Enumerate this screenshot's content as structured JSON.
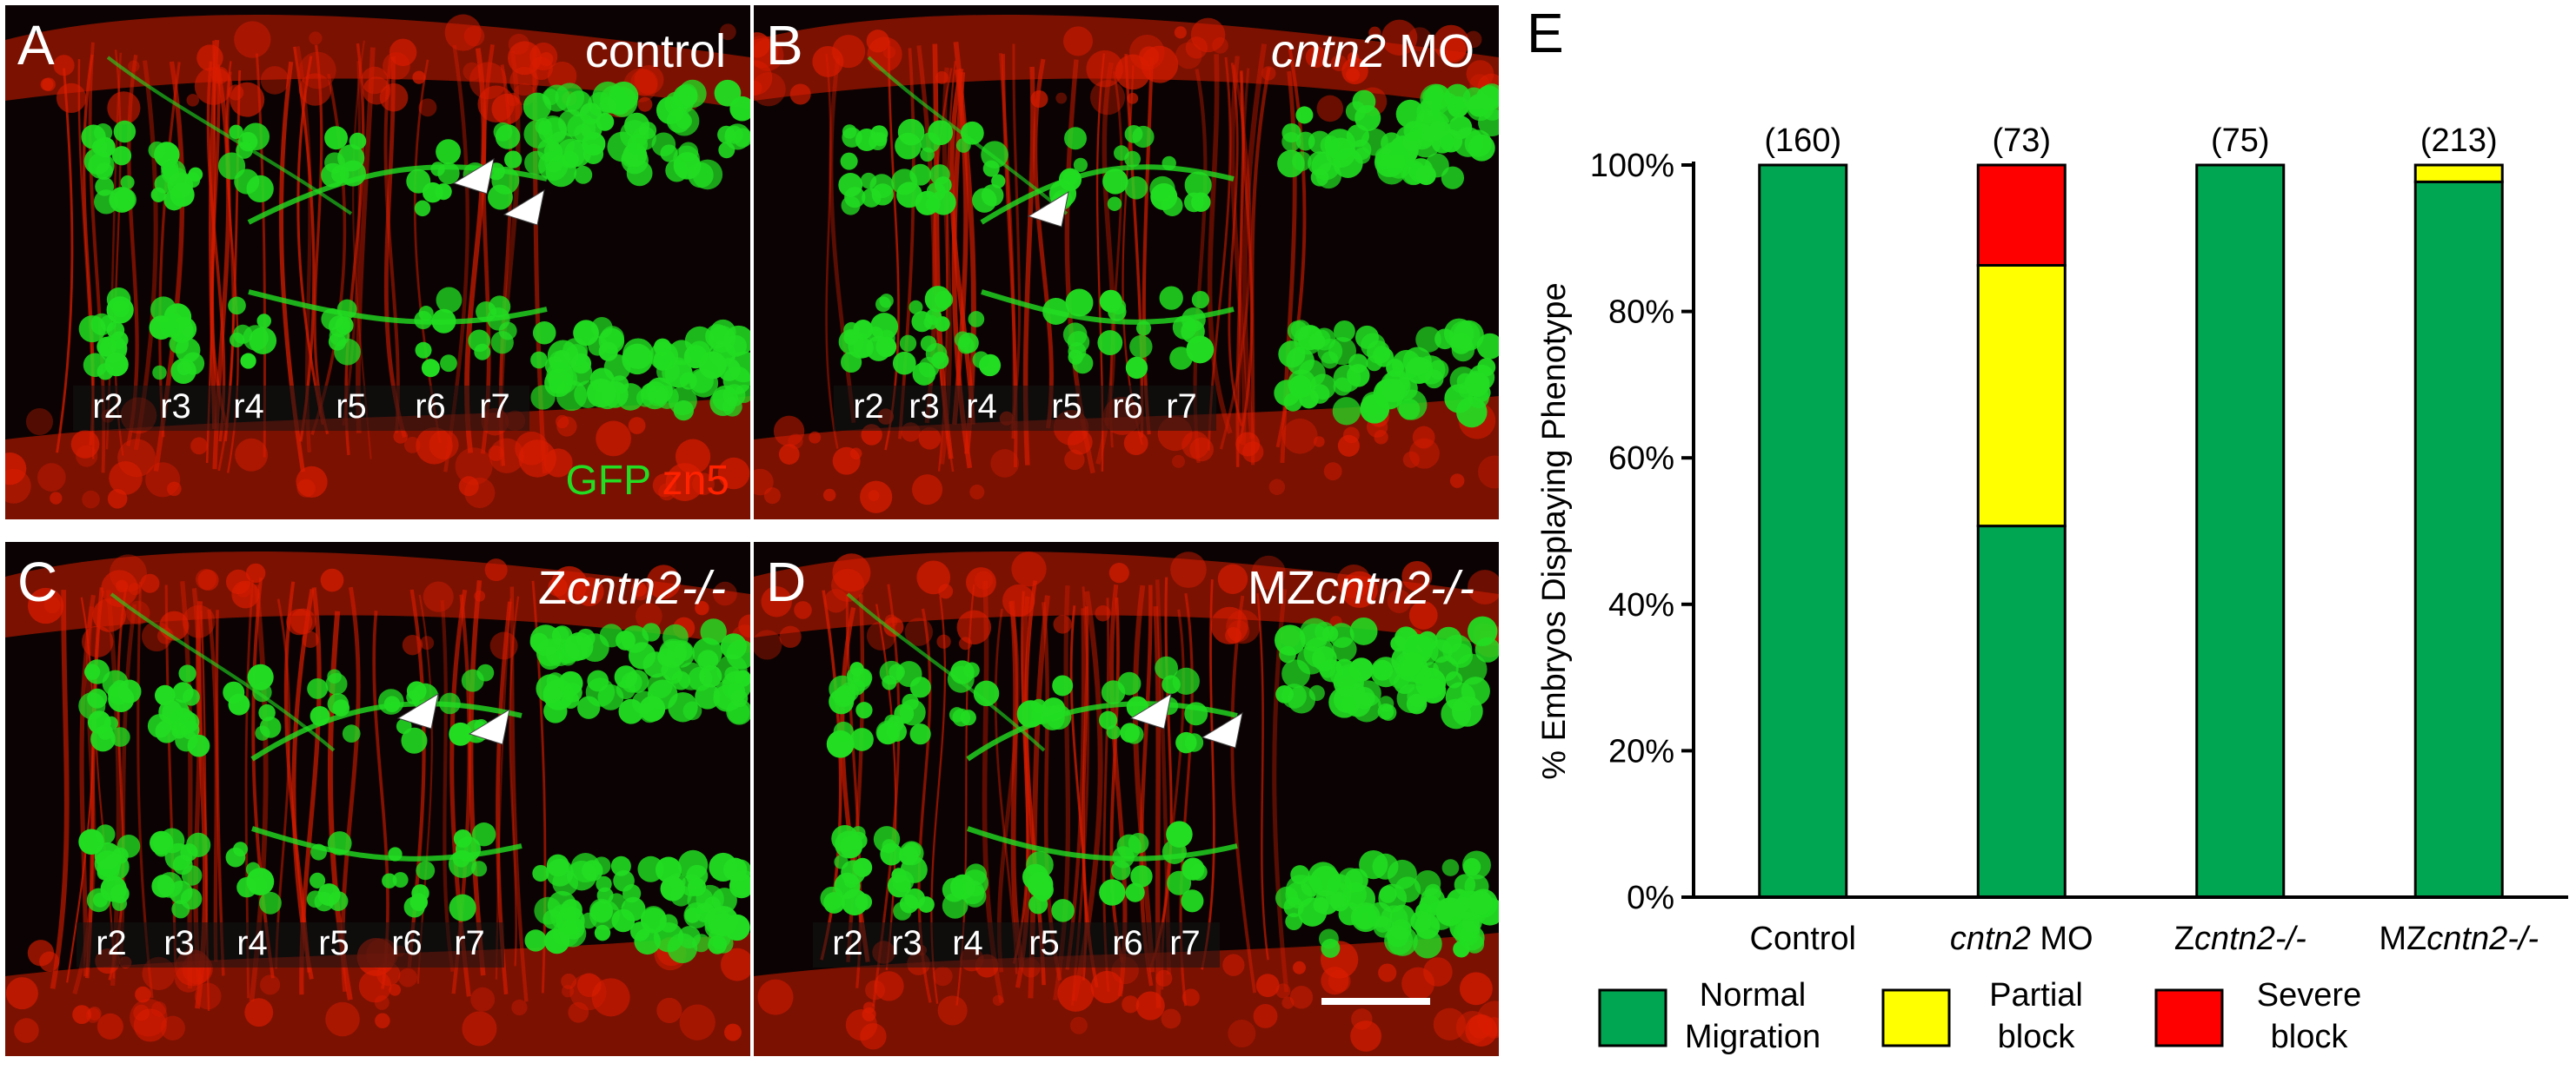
{
  "panels": [
    {
      "id": "A",
      "title": "control",
      "title_parts": [
        {
          "text": "control",
          "italic": false
        }
      ],
      "regions": [
        "r2",
        "r3",
        "r4",
        "r5",
        "r6",
        "r7"
      ],
      "stain": {
        "green": "GFP",
        "red": "zn5"
      }
    },
    {
      "id": "B",
      "title": "cntn2 MO",
      "title_parts": [
        {
          "text": "cntn2",
          "italic": true
        },
        {
          "text": " MO",
          "italic": false
        }
      ],
      "regions": [
        "r2",
        "r3",
        "r4",
        "r5",
        "r6",
        "r7"
      ]
    },
    {
      "id": "C",
      "title": "Zcntn2-/-",
      "title_parts": [
        {
          "text": "Z",
          "italic": false
        },
        {
          "text": "cntn2-/-",
          "italic": true
        }
      ],
      "regions": [
        "r2",
        "r3",
        "r4",
        "r5",
        "r6",
        "r7"
      ]
    },
    {
      "id": "D",
      "title": "MZcntn2-/-",
      "title_parts": [
        {
          "text": "MZ",
          "italic": false
        },
        {
          "text": "cntn2-/-",
          "italic": true
        }
      ],
      "regions": [
        "r2",
        "r3",
        "r4",
        "r5",
        "r6",
        "r7"
      ]
    }
  ],
  "colors": {
    "normal": "#00a651",
    "partial": "#ffff00",
    "severe": "#ff0000",
    "gfp": "#22dd22",
    "zn5": "#ff2200"
  },
  "chart_data": {
    "panel_label": "E",
    "type": "bar",
    "stacked": true,
    "categories": [
      "Control",
      "cntn2 MO",
      "Zcntn2-/-",
      "MZcntn2-/-"
    ],
    "category_parts": [
      [
        {
          "text": "Control",
          "italic": false
        }
      ],
      [
        {
          "text": "cntn2",
          "italic": true
        },
        {
          "text": " MO",
          "italic": false
        }
      ],
      [
        {
          "text": "Z",
          "italic": false
        },
        {
          "text": "cntn2-/-",
          "italic": true
        }
      ],
      [
        {
          "text": "MZ",
          "italic": false
        },
        {
          "text": "cntn2-/-",
          "italic": true
        }
      ]
    ],
    "counts": [
      "(160)",
      "(73)",
      "(75)",
      "(213)"
    ],
    "series": [
      {
        "name": "Normal Migration",
        "values": [
          100,
          50.7,
          100,
          97.7
        ],
        "color": "#00a651"
      },
      {
        "name": "Partial block",
        "values": [
          0,
          35.6,
          0,
          2.3
        ],
        "color": "#ffff00"
      },
      {
        "name": "Severe block",
        "values": [
          0,
          13.7,
          0,
          0
        ],
        "color": "#ff0000"
      }
    ],
    "legend_lines": [
      [
        "Normal",
        "Migration"
      ],
      [
        "Partial",
        "block"
      ],
      [
        "Severe",
        "block"
      ]
    ],
    "ylabel": "% Embryos Displaying Phenotype",
    "yticks": [
      "0%",
      "20%",
      "40%",
      "60%",
      "80%",
      "100%"
    ],
    "ylim": [
      0,
      100
    ]
  }
}
